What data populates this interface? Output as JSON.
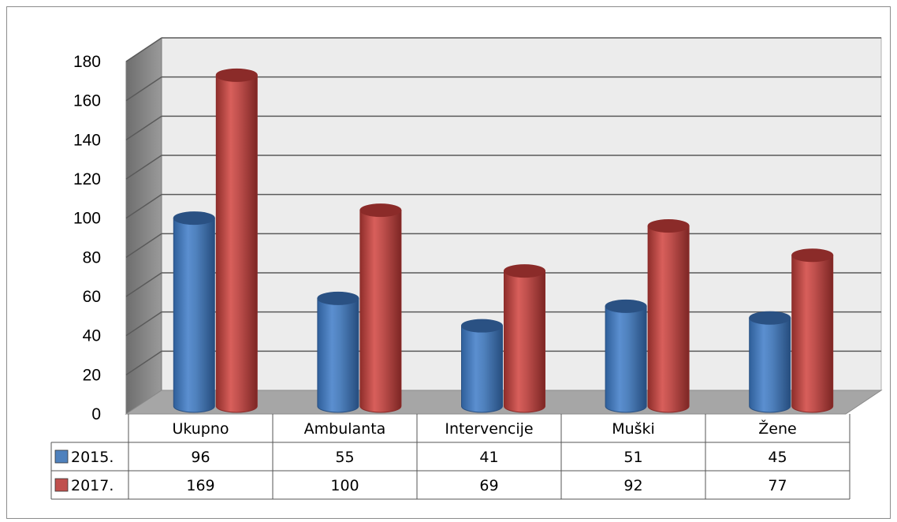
{
  "chart_data": {
    "type": "bar",
    "title": "",
    "xlabel": "",
    "ylabel": "",
    "ylim": [
      0,
      180
    ],
    "yticks": [
      0,
      20,
      40,
      60,
      80,
      100,
      120,
      140,
      160,
      180
    ],
    "grid": true,
    "legend": "data-table",
    "categories": [
      "Ukupno",
      "Ambulanta",
      "Intervencije",
      "Muški",
      "Žene"
    ],
    "series": [
      {
        "name": "2015.",
        "values": [
          96,
          55,
          41,
          51,
          45
        ],
        "color": "#4f81bd"
      },
      {
        "name": "2017.",
        "values": [
          169,
          100,
          69,
          92,
          77
        ],
        "color": "#c0504d"
      }
    ]
  }
}
